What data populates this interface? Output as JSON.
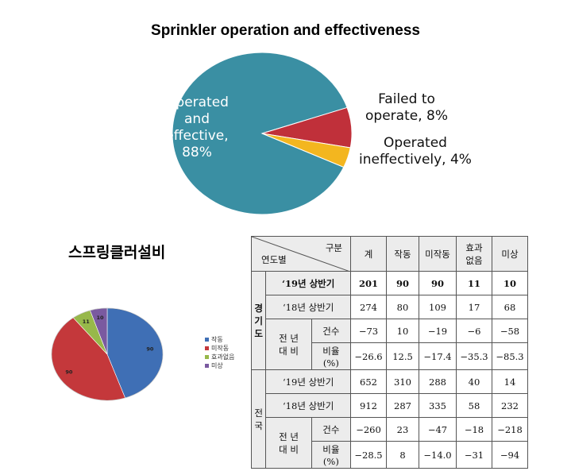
{
  "chart_data": [
    {
      "type": "pie",
      "title": "Sprinkler operation and effectiveness",
      "slices": [
        {
          "label_lines": [
            "Operated",
            "and",
            "effective,",
            "88%"
          ],
          "label": "Operated and effective, 88%",
          "value": 88,
          "color": "#3a8fa3"
        },
        {
          "label_lines": [
            "Failed to",
            "operate, 8%"
          ],
          "label": "Failed to operate, 8%",
          "value": 8,
          "color": "#c0303a"
        },
        {
          "label_lines": [
            "Operated",
            "ineffectively, 4%"
          ],
          "label": "Operated ineffectively, 4%",
          "value": 4,
          "color": "#f3b61f"
        }
      ]
    },
    {
      "type": "pie",
      "title": "스프링클러설비",
      "slices": [
        {
          "name": "작동",
          "value": 90,
          "color": "#3f6fb5"
        },
        {
          "name": "미작동",
          "value": 90,
          "color": "#c4383b"
        },
        {
          "name": "효과없음",
          "value": 11,
          "color": "#97b84a"
        },
        {
          "name": "미상",
          "value": 10,
          "color": "#7a5aa0"
        }
      ],
      "legend_position": "right"
    }
  ],
  "table": {
    "header_top": "구분",
    "header_bottom": "연도별",
    "columns": [
      "계",
      "작동",
      "미작동",
      "효과\n없음",
      "미상"
    ],
    "groups": [
      {
        "region": "경\n기\n도",
        "rows": [
          {
            "label": "‘19년 상반기",
            "values": [
              "201",
              "90",
              "90",
              "11",
              "10"
            ],
            "bold": true
          },
          {
            "label": "‘18년 상반기",
            "values": [
              "274",
              "80",
              "109",
              "17",
              "68"
            ]
          }
        ],
        "compare": {
          "label": "전 년\n대 비",
          "rows": [
            {
              "label": "건수",
              "values": [
                "−73",
                "10",
                "−19",
                "−6",
                "−58"
              ]
            },
            {
              "label": "비율\n(%)",
              "values": [
                "−26.6",
                "12.5",
                "−17.4",
                "−35.3",
                "−85.3"
              ]
            }
          ]
        }
      },
      {
        "region": "전\n국",
        "rows": [
          {
            "label": "‘19년 상반기",
            "values": [
              "652",
              "310",
              "288",
              "40",
              "14"
            ]
          },
          {
            "label": "‘18년 상반기",
            "values": [
              "912",
              "287",
              "335",
              "58",
              "232"
            ]
          }
        ],
        "compare": {
          "label": "전 년\n대 비",
          "rows": [
            {
              "label": "건수",
              "values": [
                "−260",
                "23",
                "−47",
                "−18",
                "−218"
              ]
            },
            {
              "label": "비율\n(%)",
              "values": [
                "−28.5",
                "8",
                "−14.0",
                "−31",
                "−94"
              ]
            }
          ]
        }
      }
    ]
  }
}
